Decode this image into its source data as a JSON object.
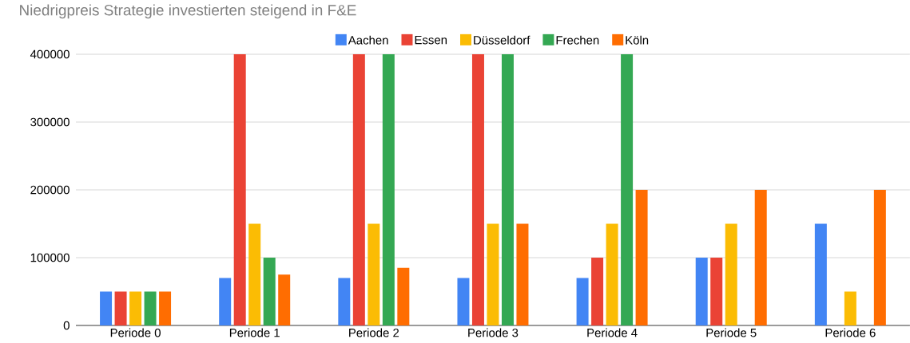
{
  "chart_data": {
    "type": "bar",
    "title": "Niedrigpreis Strategie investierten steigend in F&E",
    "categories": [
      "Periode 0",
      "Periode 1",
      "Periode 2",
      "Periode 3",
      "Periode 4",
      "Periode 5",
      "Periode 6"
    ],
    "series": [
      {
        "name": "Aachen",
        "color": "#4285f4",
        "values": [
          50000,
          70000,
          70000,
          70000,
          70000,
          100000,
          150000
        ]
      },
      {
        "name": "Essen",
        "color": "#ea4335",
        "values": [
          50000,
          400000,
          400000,
          400000,
          100000,
          100000,
          0
        ]
      },
      {
        "name": "Düsseldorf",
        "color": "#fbbc04",
        "values": [
          50000,
          150000,
          150000,
          150000,
          150000,
          150000,
          50000
        ]
      },
      {
        "name": "Frechen",
        "color": "#34a853",
        "values": [
          50000,
          100000,
          400000,
          400000,
          400000,
          0,
          0
        ]
      },
      {
        "name": "Köln",
        "color": "#ff6d01",
        "values": [
          50000,
          75000,
          85000,
          150000,
          200000,
          200000,
          200000
        ]
      }
    ],
    "ylim": [
      0,
      400000
    ],
    "yticks": [
      0,
      100000,
      200000,
      300000,
      400000
    ],
    "grid": "y",
    "legend": "top"
  }
}
